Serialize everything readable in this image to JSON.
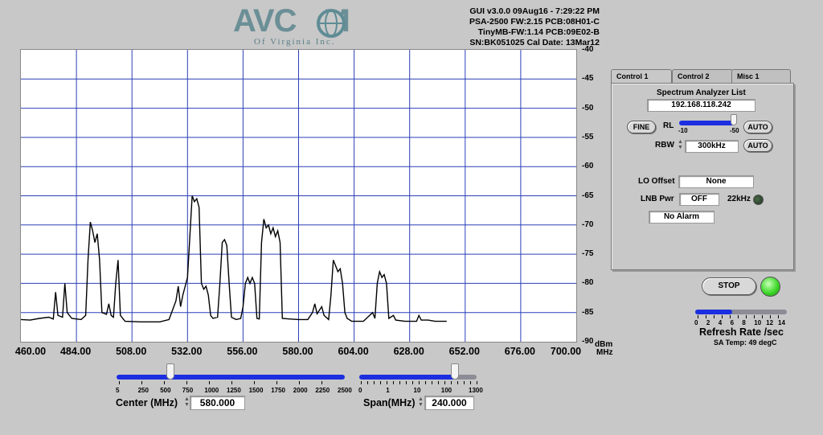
{
  "logo": {
    "wordmark": "AVCOM",
    "subtitle": "Of Virginia Inc."
  },
  "device_info": {
    "line1": "GUI v3.0.0  09Aug16 - 7:29:22 PM",
    "line2": "PSA-2500 FW:2.15 PCB:08H01-C",
    "line3": "TinyMB-FW:1.14  PCB:09E02-B",
    "line4": "SN:BK051025  Cal Date: 13Mar12"
  },
  "spectrum": {
    "y_ticks": [
      "-40",
      "-45",
      "-50",
      "-55",
      "-60",
      "-65",
      "-70",
      "-75",
      "-80",
      "-85",
      "-90"
    ],
    "x_ticks": [
      "460.00",
      "484.00",
      "508.00",
      "532.00",
      "556.00",
      "580.00",
      "604.00",
      "628.00",
      "652.00",
      "676.00",
      "700.00"
    ],
    "y_unit": "dBm",
    "x_unit": "MHz",
    "trace_color": "#000000",
    "grid_color": "#2b3fb8"
  },
  "chart_data": {
    "type": "line",
    "x_range_mhz": [
      460,
      700
    ],
    "y_range_dbm": [
      -90,
      -40
    ],
    "series": [
      {
        "points": [
          [
            460,
            -86.2
          ],
          [
            464,
            -86.3
          ],
          [
            468,
            -86.0
          ],
          [
            472,
            -85.8
          ],
          [
            474,
            -86.1
          ],
          [
            475,
            -81.5
          ],
          [
            476,
            -85.5
          ],
          [
            478,
            -85.8
          ],
          [
            479,
            -80.0
          ],
          [
            480,
            -85.0
          ],
          [
            482,
            -86.0
          ],
          [
            486,
            -86.2
          ],
          [
            488,
            -85.5
          ],
          [
            489,
            -76
          ],
          [
            490,
            -69.5
          ],
          [
            491,
            -71
          ],
          [
            492,
            -73
          ],
          [
            493,
            -71.5
          ],
          [
            494,
            -76
          ],
          [
            495,
            -85
          ],
          [
            497,
            -85.3
          ],
          [
            498,
            -83.5
          ],
          [
            499,
            -85.5
          ],
          [
            500,
            -85.8
          ],
          [
            501,
            -80
          ],
          [
            502,
            -76
          ],
          [
            503,
            -85.5
          ],
          [
            505,
            -86.5
          ],
          [
            512,
            -86.6
          ],
          [
            520,
            -86.6
          ],
          [
            524,
            -86.2
          ],
          [
            527,
            -83
          ],
          [
            528,
            -80.5
          ],
          [
            529,
            -84
          ],
          [
            530,
            -82
          ],
          [
            531,
            -80.5
          ],
          [
            532,
            -79
          ],
          [
            533,
            -72
          ],
          [
            534,
            -65
          ],
          [
            535,
            -66
          ],
          [
            536,
            -65.5
          ],
          [
            537,
            -67
          ],
          [
            538,
            -80
          ],
          [
            539,
            -81
          ],
          [
            540,
            -80.5
          ],
          [
            541,
            -82
          ],
          [
            542,
            -85.5
          ],
          [
            543,
            -86
          ],
          [
            545,
            -85.8
          ],
          [
            546,
            -80
          ],
          [
            547,
            -73
          ],
          [
            548,
            -72.5
          ],
          [
            549,
            -73.5
          ],
          [
            550,
            -80
          ],
          [
            551,
            -85.8
          ],
          [
            553,
            -86.2
          ],
          [
            555,
            -86
          ],
          [
            556,
            -84
          ],
          [
            557,
            -80
          ],
          [
            558,
            -79
          ],
          [
            559,
            -80
          ],
          [
            560,
            -79
          ],
          [
            561,
            -80
          ],
          [
            562,
            -86
          ],
          [
            563,
            -86.1
          ],
          [
            564,
            -73
          ],
          [
            565,
            -69
          ],
          [
            566,
            -70.5
          ],
          [
            567,
            -70
          ],
          [
            568,
            -71.5
          ],
          [
            569,
            -70.5
          ],
          [
            570,
            -72
          ],
          [
            571,
            -71
          ],
          [
            572,
            -73
          ],
          [
            573,
            -86
          ],
          [
            576,
            -86.1
          ],
          [
            580,
            -86.2
          ],
          [
            584,
            -86.2
          ],
          [
            586,
            -85
          ],
          [
            587,
            -83.5
          ],
          [
            588,
            -85.2
          ],
          [
            590,
            -84
          ],
          [
            591,
            -85.5
          ],
          [
            593,
            -86.2
          ],
          [
            594,
            -82
          ],
          [
            595,
            -76
          ],
          [
            596,
            -77
          ],
          [
            597,
            -78
          ],
          [
            598,
            -77.5
          ],
          [
            599,
            -80
          ],
          [
            600,
            -85
          ],
          [
            601,
            -86
          ],
          [
            603,
            -86.5
          ],
          [
            608,
            -86.5
          ],
          [
            612,
            -85
          ],
          [
            613,
            -86
          ],
          [
            614,
            -80
          ],
          [
            615,
            -78
          ],
          [
            616,
            -79
          ],
          [
            617,
            -78.5
          ],
          [
            618,
            -80
          ],
          [
            619,
            -86
          ],
          [
            621,
            -85.5
          ],
          [
            622,
            -86.3
          ],
          [
            626,
            -86.5
          ],
          [
            631,
            -86.5
          ],
          [
            632,
            -85.5
          ],
          [
            633,
            -86.3
          ],
          [
            636,
            -86.3
          ],
          [
            639,
            -86.5
          ],
          [
            644,
            -86.5
          ]
        ]
      }
    ]
  },
  "tabs": [
    {
      "label": "Control 1",
      "active": true
    },
    {
      "label": "Control 2",
      "active": false
    },
    {
      "label": "Misc 1",
      "active": false
    }
  ],
  "panel": {
    "title": "Spectrum Analyzer List",
    "ip": "192.168.118.242",
    "fine_label": "FINE",
    "rl_label": "RL",
    "rl_min": "-10",
    "rl_max": "-50",
    "auto_label": "AUTO",
    "rbw_label": "RBW",
    "rbw_value": "300kHz",
    "lo_offset_label": "LO Offset",
    "lo_offset_value": "None",
    "lnb_pwr_label": "LNB Pwr",
    "lnb_pwr_value": "OFF",
    "khz22_label": "22kHz",
    "alarm_value": "No Alarm"
  },
  "run": {
    "stop_label": "STOP",
    "led_color": "#3fd92a",
    "refresh_scale": [
      "0",
      "2",
      "4",
      "6",
      "8",
      "10",
      "12",
      "14"
    ],
    "refresh_label": "Refresh Rate /sec",
    "sa_temp": "SA Temp: 49 degC",
    "refresh_value": 5.6
  },
  "center": {
    "scale": [
      "5",
      "250",
      "500",
      "750",
      "1000",
      "1250",
      "1500",
      "1750",
      "2000",
      "2250",
      "2500"
    ],
    "label": "Center (MHz)",
    "value": "580.000",
    "slider_value": 580
  },
  "span": {
    "scale": [
      "0",
      "1",
      "10",
      "100",
      "1300"
    ],
    "label": "Span(MHz)",
    "value": "240.000",
    "slider_value": 240
  }
}
